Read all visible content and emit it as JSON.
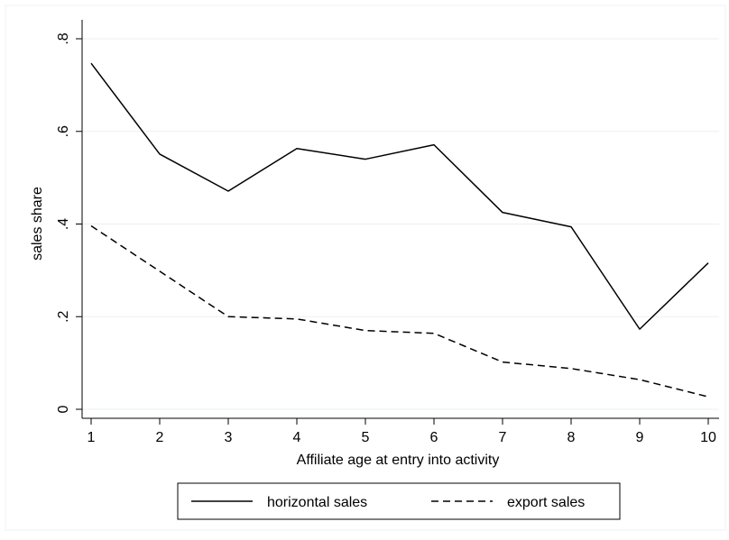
{
  "chart_data": {
    "type": "line",
    "title": "",
    "xlabel": "Affiliate age at entry into activity",
    "ylabel": "sales share",
    "x": [
      1,
      2,
      3,
      4,
      5,
      6,
      7,
      8,
      9,
      10
    ],
    "xticks": [
      "1",
      "2",
      "3",
      "4",
      "5",
      "6",
      "7",
      "8",
      "9",
      "10"
    ],
    "yticks": [
      {
        "value": 0,
        "label": "0"
      },
      {
        "value": 0.2,
        "label": ".2"
      },
      {
        "value": 0.4,
        "label": ".4"
      },
      {
        "value": 0.6,
        "label": ".6"
      },
      {
        "value": 0.8,
        "label": ".8"
      }
    ],
    "xlim": [
      1,
      10
    ],
    "ylim": [
      0,
      0.8
    ],
    "grid": true,
    "legend_position": "bottom",
    "series": [
      {
        "name": "horizontal sales",
        "style": "solid",
        "color": "#000000",
        "values": [
          0.747,
          0.551,
          0.471,
          0.563,
          0.54,
          0.571,
          0.425,
          0.394,
          0.173,
          0.316
        ]
      },
      {
        "name": "export sales",
        "style": "dashed",
        "color": "#000000",
        "values": [
          0.396,
          0.298,
          0.2,
          0.195,
          0.17,
          0.164,
          0.102,
          0.088,
          0.064,
          0.027
        ]
      }
    ]
  }
}
